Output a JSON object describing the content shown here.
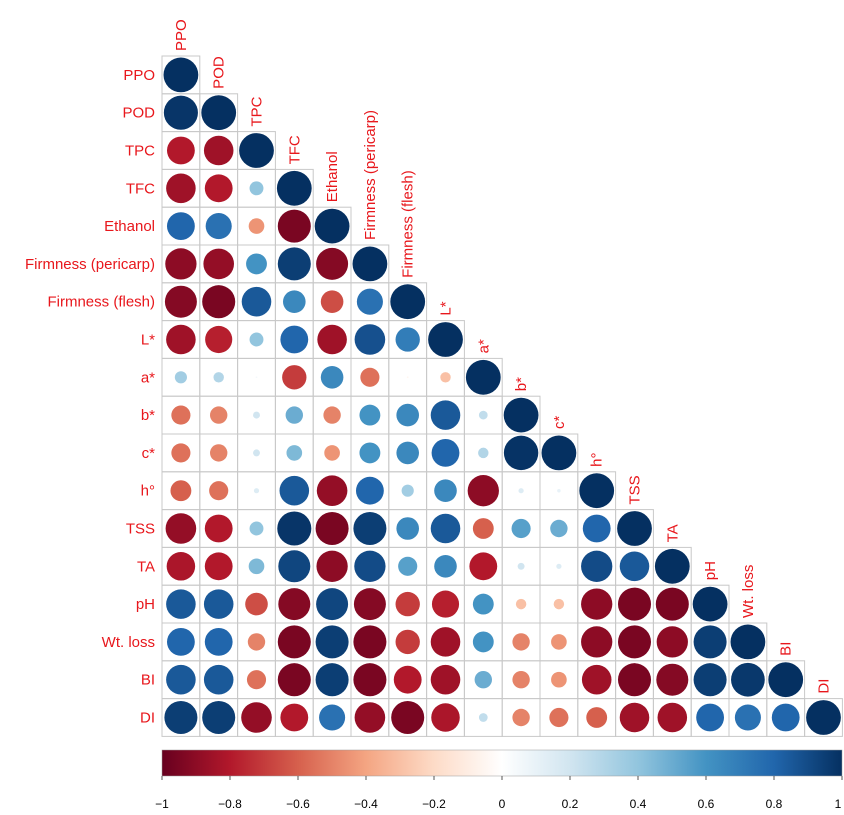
{
  "chart_data": {
    "type": "corrplot",
    "variables": [
      "PPO",
      "POD",
      "TPC",
      "TFC",
      "Ethanol",
      "Firmness (pericarp)",
      "Firmness (flesh)",
      "L*",
      "a*",
      "b*",
      "c*",
      "h°",
      "TSS",
      "TA",
      "pH",
      "Wt. loss",
      "BI",
      "DI"
    ],
    "matrix": [
      [
        1
      ],
      [
        0.98,
        1
      ],
      [
        -0.8,
        -0.85,
        1
      ],
      [
        -0.85,
        -0.8,
        0.4,
        1
      ],
      [
        0.8,
        0.75,
        -0.45,
        -0.95,
        1
      ],
      [
        -0.9,
        -0.88,
        0.6,
        0.95,
        -0.92,
        1
      ],
      [
        -0.92,
        -0.95,
        0.85,
        0.65,
        -0.65,
        0.75,
        1
      ],
      [
        -0.85,
        -0.78,
        0.4,
        0.8,
        -0.85,
        0.88,
        0.7,
        1
      ],
      [
        0.35,
        0.3,
        0.05,
        -0.7,
        0.65,
        -0.55,
        -0.05,
        -0.3,
        1
      ],
      [
        -0.55,
        -0.5,
        0.2,
        0.5,
        -0.5,
        0.6,
        0.65,
        0.85,
        0.25,
        1
      ],
      [
        -0.55,
        -0.5,
        0.2,
        0.45,
        -0.45,
        0.6,
        0.65,
        0.8,
        0.3,
        0.99,
        1
      ],
      [
        -0.6,
        -0.55,
        0.15,
        0.85,
        -0.88,
        0.8,
        0.35,
        0.65,
        -0.9,
        0.15,
        0.1,
        1
      ],
      [
        -0.88,
        -0.8,
        0.4,
        0.98,
        -0.95,
        0.95,
        0.65,
        0.85,
        -0.6,
        0.55,
        0.5,
        0.8,
        1
      ],
      [
        -0.82,
        -0.8,
        0.45,
        0.92,
        -0.9,
        0.9,
        0.55,
        0.65,
        -0.8,
        0.2,
        0.15,
        0.9,
        0.85,
        1
      ],
      [
        0.85,
        0.85,
        -0.65,
        -0.92,
        0.92,
        -0.92,
        -0.7,
        -0.78,
        0.6,
        -0.3,
        -0.3,
        -0.9,
        -0.95,
        -0.95,
        1
      ],
      [
        0.8,
        0.8,
        -0.5,
        -0.95,
        0.95,
        -0.95,
        -0.7,
        -0.85,
        0.6,
        -0.5,
        -0.45,
        -0.9,
        -0.95,
        -0.9,
        0.95,
        1
      ],
      [
        0.85,
        0.85,
        -0.55,
        -0.95,
        0.95,
        -0.95,
        -0.8,
        -0.85,
        0.5,
        -0.5,
        -0.45,
        -0.85,
        -0.95,
        -0.92,
        0.95,
        0.97,
        1
      ],
      [
        0.95,
        0.95,
        -0.88,
        -0.8,
        0.75,
        -0.88,
        -0.95,
        -0.82,
        0.25,
        -0.5,
        -0.55,
        -0.6,
        -0.85,
        -0.85,
        0.8,
        0.75,
        0.8,
        1
      ]
    ],
    "colors": [
      "#67001F",
      "#B2182B",
      "#D6604D",
      "#F4A582",
      "#FDDBC7",
      "#FFFFFF",
      "#D1E5F0",
      "#92C5DE",
      "#4393C3",
      "#2166AC",
      "#053061"
    ],
    "clim": [
      -1,
      1
    ],
    "cticks": [
      {
        "value": -1,
        "label": "−1"
      },
      {
        "value": -0.8,
        "label": "−0.8"
      },
      {
        "value": -0.6,
        "label": "−0.6"
      },
      {
        "value": -0.4,
        "label": "−0.4"
      },
      {
        "value": -0.2,
        "label": "−0.2"
      },
      0,
      0.2,
      0.4,
      0.6,
      0.8,
      1
    ]
  }
}
